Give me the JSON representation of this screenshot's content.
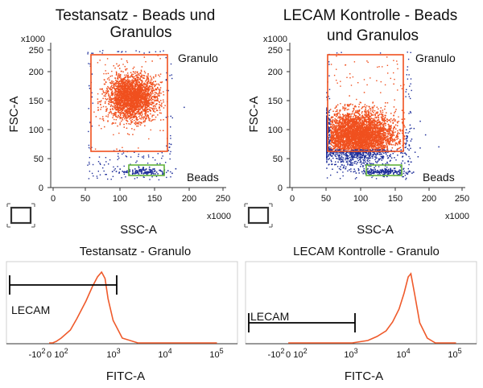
{
  "colors": {
    "gate": "#f0501e",
    "granulo_dots": "#f0501e",
    "other_dots": "#1f2f9a",
    "beads_gate": "#62b33b",
    "histogram": "#ef5a2b",
    "marker": "#000000"
  },
  "icons": [
    "frame-selection-icon"
  ],
  "chart_data": [
    {
      "type": "scatter",
      "title_lines": [
        "Testansatz - Beads und",
        "Granulos"
      ],
      "xlabel": "SSC-A",
      "ylabel": "FSC-A",
      "x_multiplier": "x1000",
      "y_multiplier": "x1000",
      "xlim": [
        0,
        250
      ],
      "ylim": [
        0,
        250
      ],
      "xticks": [
        "0",
        "50",
        "100",
        "150",
        "200",
        "250"
      ],
      "yticks": [
        "0",
        "50",
        "100",
        "150",
        "200",
        "250"
      ],
      "series": [
        {
          "name": "Granulo",
          "approx_center": [
            115,
            165
          ],
          "approx_spread": [
            18,
            20
          ],
          "approx_events": 2600
        },
        {
          "name": "Beads",
          "approx_center": [
            135,
            30
          ],
          "approx_spread": [
            18,
            3
          ],
          "approx_events": 120
        }
      ],
      "gates": [
        {
          "name": "Granulo",
          "x_range": [
            58,
            165
          ],
          "y_range": [
            70,
            245
          ]
        },
        {
          "name": "Beads",
          "x_range": [
            110,
            160
          ],
          "y_range": [
            24,
            37
          ]
        }
      ]
    },
    {
      "type": "scatter",
      "title_lines": [
        "LECAM Kontrolle - Beads",
        "und Granulos"
      ],
      "xlabel": "SSC-A",
      "ylabel": "FSC-A",
      "x_multiplier": "x1000",
      "y_multiplier": "x1000",
      "xlim": [
        0,
        250
      ],
      "ylim": [
        0,
        250
      ],
      "xticks": [
        "0",
        "50",
        "100",
        "150",
        "200",
        "250"
      ],
      "yticks": [
        "0",
        "50",
        "100",
        "150",
        "200",
        "250"
      ],
      "series": [
        {
          "name": "Granulo",
          "approx_center": [
            95,
            95
          ],
          "approx_spread": [
            28,
            22
          ],
          "approx_events": 4200
        },
        {
          "name": "Beads",
          "approx_center": [
            135,
            30
          ],
          "approx_spread": [
            18,
            3
          ],
          "approx_events": 150
        }
      ],
      "gates": [
        {
          "name": "Granulo",
          "x_range": [
            55,
            165
          ],
          "y_range": [
            70,
            245
          ]
        },
        {
          "name": "Beads",
          "x_range": [
            110,
            160
          ],
          "y_range": [
            24,
            37
          ]
        }
      ]
    },
    {
      "type": "area",
      "title": "Testansatz - Granulo",
      "xlabel": "FITC-A",
      "x_scale": "biexponential",
      "xticks": [
        "-10^2",
        "0",
        "10^2",
        "10^3",
        "10^4",
        "10^5"
      ],
      "x": [
        1,
        30,
        60,
        100,
        150,
        200,
        300,
        400,
        500,
        600,
        700,
        800,
        1000,
        1500,
        3000,
        100000
      ],
      "y": [
        0,
        0,
        2,
        6,
        16,
        30,
        52,
        70,
        82,
        88,
        80,
        55,
        28,
        6,
        0,
        0
      ],
      "marker": {
        "label": "LECAM",
        "x_range": [
          -800,
          1300
        ]
      }
    },
    {
      "type": "area",
      "title": "LECAM Kontrolle - Granulo",
      "xlabel": "FITC-A",
      "x_scale": "biexponential",
      "xticks": [
        "-10^2",
        "0",
        "10^2",
        "10^3",
        "10^4",
        "10^5"
      ],
      "x": [
        1,
        500,
        1000,
        2000,
        3000,
        4500,
        6000,
        8000,
        10000,
        12000,
        13500,
        16000,
        20000,
        28000,
        40000,
        100000
      ],
      "y": [
        0,
        0,
        0,
        3,
        8,
        15,
        26,
        42,
        62,
        82,
        86,
        60,
        25,
        6,
        0,
        0
      ],
      "marker": {
        "label": "LECAM",
        "x_range": [
          -800,
          1300
        ]
      }
    }
  ],
  "labels": {
    "p1_title_1": "Testansatz - Beads und",
    "p1_title_2": "Granulos",
    "p2_title_1": "LECAM Kontrolle - Beads",
    "p2_title_2": "und Granulos",
    "gate_granulo": "Granulo",
    "gate_beads": "Beads",
    "fsc": "FSC-A",
    "ssc": "SSC-A",
    "mult": "x1000",
    "h1_title": "Testansatz - Granulo",
    "h2_title": "LECAM Kontrolle - Granulo",
    "fitc": "FITC-A",
    "lecam": "LECAM",
    "ticks_lin": [
      "0",
      "50",
      "100",
      "150",
      "200",
      "250"
    ],
    "hist_ticks": {
      "m_base": "-10",
      "m_exp": "2",
      "zero": "0",
      "b2": "10",
      "e2": "2",
      "b3": "10",
      "e3": "3",
      "b4": "10",
      "e4": "4",
      "b5": "10",
      "e5": "5"
    }
  }
}
